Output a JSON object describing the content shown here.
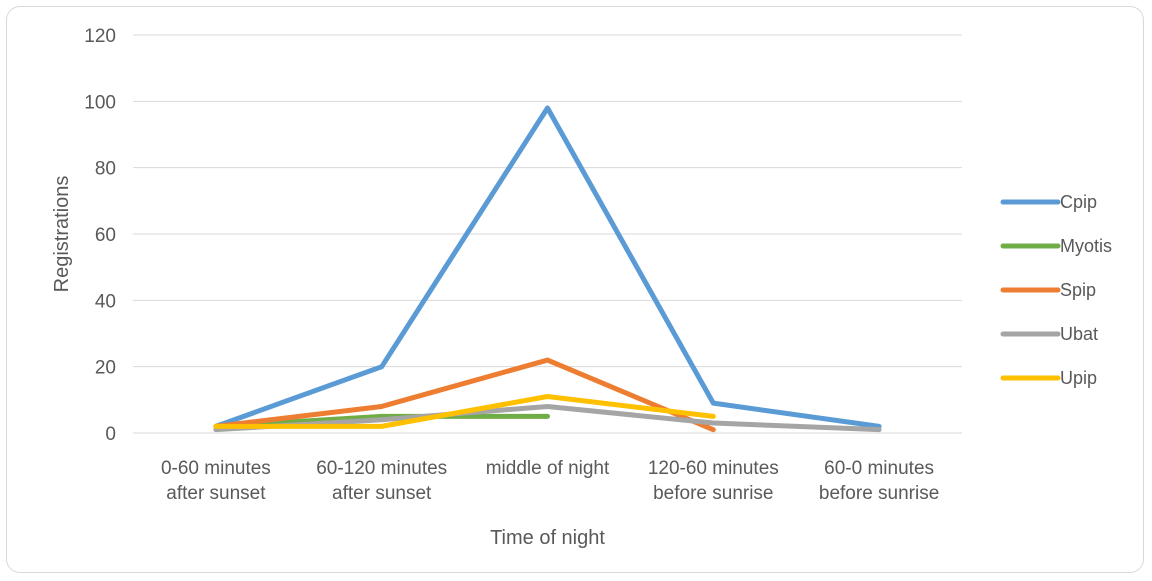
{
  "chart_data": {
    "type": "line",
    "title": "",
    "xlabel": "Time of night",
    "ylabel": "Registrations",
    "ylim": [
      0,
      120
    ],
    "yticks": [
      0,
      20,
      40,
      60,
      80,
      100,
      120
    ],
    "grid": true,
    "legend_position": "right",
    "categories": [
      [
        "0-60 minutes",
        "after sunset"
      ],
      [
        "60-120 minutes",
        "after sunset"
      ],
      [
        "middle of night"
      ],
      [
        "120-60 minutes",
        "before sunrise"
      ],
      [
        "60-0 minutes",
        "before sunrise"
      ]
    ],
    "series": [
      {
        "name": "Cpip",
        "color": "#5b9bd5",
        "values": [
          2,
          20,
          98,
          9,
          2
        ]
      },
      {
        "name": "Myotis",
        "color": "#70ad47",
        "values": [
          2,
          5,
          5,
          null,
          null
        ]
      },
      {
        "name": "Spip",
        "color": "#ed7d31",
        "values": [
          2,
          8,
          22,
          1,
          null
        ]
      },
      {
        "name": "Ubat",
        "color": "#a5a5a5",
        "values": [
          1,
          4,
          8,
          3,
          1
        ]
      },
      {
        "name": "Upip",
        "color": "#ffc000",
        "values": [
          2,
          2,
          11,
          5,
          null
        ]
      }
    ]
  }
}
